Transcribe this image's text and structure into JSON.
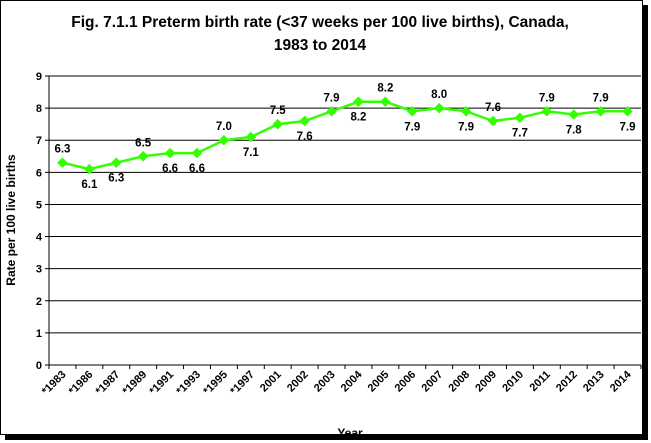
{
  "chart_data": {
    "type": "line",
    "title_lines": [
      "Fig. 7.1.1 Preterm birth rate (<37 weeks per 100 live births), Canada,",
      "1983 to 2014"
    ],
    "xlabel": "Year",
    "ylabel": "Rate per 100 live births",
    "ylim": [
      0,
      9
    ],
    "y_ticks": [
      "0",
      "1",
      "2",
      "3",
      "4",
      "5",
      "6",
      "7",
      "8",
      "9"
    ],
    "categories": [
      "*1983",
      "*1986",
      "*1987",
      "*1989",
      "*1991",
      "*1993",
      "*1995",
      "*1997",
      "2001",
      "2002",
      "2003",
      "2004",
      "2005",
      "2006",
      "2007",
      "2008",
      "2009",
      "2010",
      "2011",
      "2012",
      "2013",
      "2014"
    ],
    "values": [
      6.3,
      6.1,
      6.3,
      6.5,
      6.6,
      6.6,
      7.0,
      7.1,
      7.5,
      7.6,
      7.9,
      8.2,
      8.2,
      7.9,
      8.0,
      7.9,
      7.6,
      7.7,
      7.9,
      7.8,
      7.9,
      7.9
    ],
    "data_labels": [
      "6.3",
      "6.1",
      "6.3",
      "6.5",
      "6.6",
      "6.6",
      "7.0",
      "7.1",
      "7.5",
      "7.6",
      "7.9",
      "8.2",
      "8.2",
      "7.9",
      "8.0",
      "7.9",
      "7.6",
      "7.7",
      "7.9",
      "7.8",
      "7.9",
      "7.9"
    ],
    "label_positions": [
      "above",
      "below",
      "below",
      "above",
      "below",
      "below",
      "above",
      "below",
      "above",
      "below",
      "above",
      "below",
      "above",
      "below",
      "above",
      "below",
      "above",
      "below",
      "above",
      "below",
      "above",
      "below"
    ],
    "grid": true,
    "legend": "none",
    "colors": {
      "line": "#33ff00",
      "marker": "#33ff00",
      "grid": "#000000",
      "frame": "#000000"
    }
  }
}
